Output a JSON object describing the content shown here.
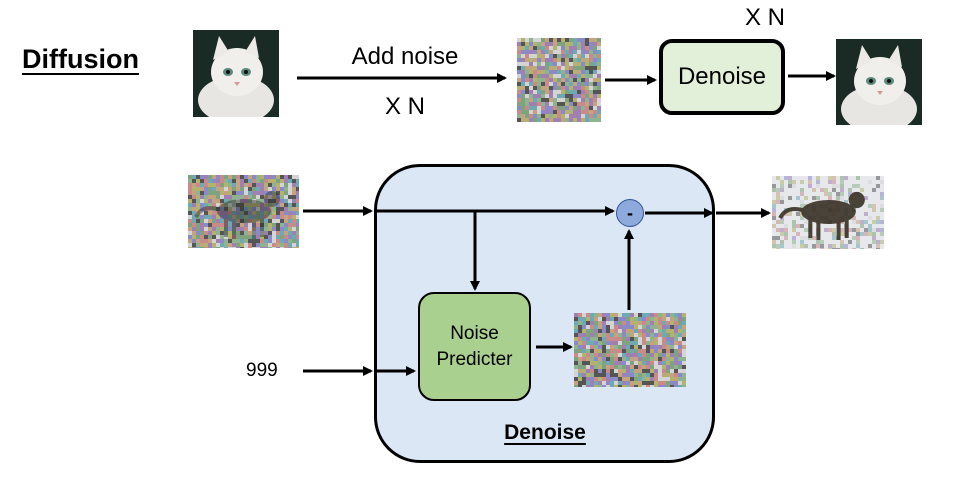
{
  "top": {
    "title": "Diffusion",
    "add_noise_label": "Add noise",
    "repeat_label_under": "X N",
    "repeat_label_above": "X N",
    "denoise_box_label": "Denoise"
  },
  "detail": {
    "step_label": "999",
    "noise_predicter_line1": "Noise",
    "noise_predicter_line2": "Predicter",
    "minus_symbol": "-",
    "container_title": "Denoise"
  },
  "colors": {
    "denoise_box_fill": "#e2efd9",
    "container_fill": "#dbe7f5",
    "noise_predicter_fill": "#a9d08e",
    "minus_node_fill": "#8ea9db"
  },
  "images": {
    "cat_clean_input": "fluffy-white-kitten-photo",
    "pure_noise": "random-noise-image",
    "cat_clean_output": "fluffy-white-kitten-photo",
    "noisy_cat_input": "noisy-cat-silhouette",
    "predicted_noise": "random-noise-image",
    "less_noisy_cat_output": "less-noisy-cat-silhouette"
  }
}
